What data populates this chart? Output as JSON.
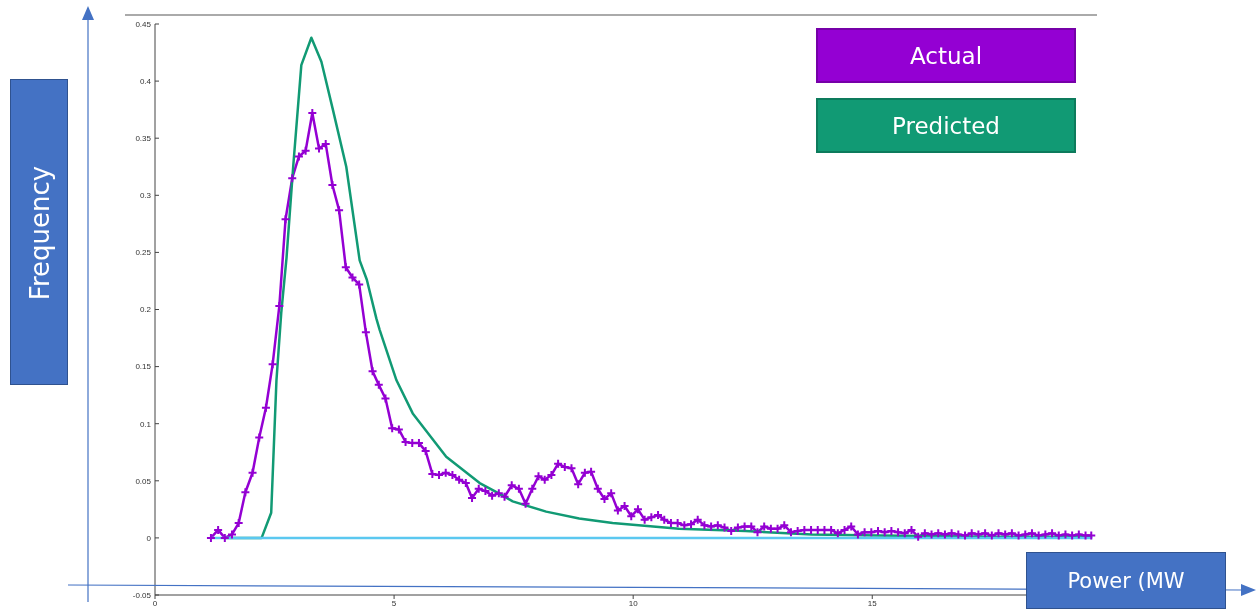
{
  "chart_data": {
    "type": "line",
    "xlabel": "Power (MW",
    "ylabel": "Frequency",
    "xlim": [
      0,
      19.7
    ],
    "xticks": [
      0,
      5,
      10,
      15
    ],
    "ylim": [
      -0.05,
      0.45
    ],
    "yticks": [
      -0.05,
      0,
      0.05,
      0.1,
      0.15,
      0.2,
      0.25,
      0.3,
      0.35,
      0.4,
      0.45
    ],
    "grid": false,
    "legend": "top right",
    "line_style": "solid",
    "series": [
      {
        "name": "Actual",
        "color": "#9400d3",
        "marker": "cross",
        "x": [
          1.17,
          1.32,
          1.46,
          1.61,
          1.75,
          1.89,
          2.04,
          2.18,
          2.32,
          2.46,
          2.6,
          2.73,
          2.87,
          3.01,
          3.15,
          3.29,
          3.43,
          3.57,
          3.71,
          3.85,
          3.99,
          4.13,
          4.27,
          4.41,
          4.55,
          4.68,
          4.82,
          4.96,
          5.1,
          5.24,
          5.38,
          5.52,
          5.66,
          5.8,
          5.94,
          6.08,
          6.22,
          6.36,
          6.5,
          6.63,
          6.77,
          6.91,
          7.05,
          7.19,
          7.31,
          7.46,
          7.61,
          7.75,
          7.89,
          8.02,
          8.15,
          8.29,
          8.43,
          8.57,
          8.71,
          8.85,
          8.99,
          9.12,
          9.26,
          9.4,
          9.54,
          9.68,
          9.82,
          9.96,
          10.1,
          10.24,
          10.38,
          10.52,
          10.65,
          10.79,
          10.93,
          11.07,
          11.21,
          11.35,
          11.49,
          11.63,
          11.77,
          11.91,
          12.05,
          12.19,
          12.33,
          12.47,
          12.6,
          12.74,
          12.88,
          13.02,
          13.16,
          13.3,
          13.44,
          13.58,
          13.72,
          13.86,
          14.0,
          14.14,
          14.28,
          14.42,
          14.56,
          14.7,
          14.84,
          14.98,
          15.12,
          15.26,
          15.4,
          15.54,
          15.68,
          15.82,
          15.96,
          16.1,
          16.24,
          16.38,
          16.52,
          16.66,
          16.8,
          16.94,
          17.08,
          17.22,
          17.36,
          17.5,
          17.64,
          17.78,
          17.92,
          18.06,
          18.2,
          18.34,
          18.48,
          18.62,
          18.76,
          18.9,
          19.04,
          19.18,
          19.32,
          19.46,
          19.58
        ],
        "values": [
          0,
          0.007,
          0,
          0.003,
          0.013,
          0.04,
          0.057,
          0.088,
          0.114,
          0.152,
          0.203,
          0.279,
          0.315,
          0.334,
          0.339,
          0.372,
          0.341,
          0.345,
          0.309,
          0.287,
          0.237,
          0.228,
          0.222,
          0.18,
          0.146,
          0.134,
          0.122,
          0.096,
          0.095,
          0.084,
          0.083,
          0.083,
          0.076,
          0.056,
          0.055,
          0.057,
          0.055,
          0.051,
          0.048,
          0.035,
          0.043,
          0.041,
          0.037,
          0.039,
          0.036,
          0.046,
          0.043,
          0.03,
          0.043,
          0.054,
          0.051,
          0.055,
          0.065,
          0.062,
          0.061,
          0.047,
          0.057,
          0.058,
          0.043,
          0.034,
          0.039,
          0.024,
          0.028,
          0.019,
          0.025,
          0.016,
          0.018,
          0.02,
          0.016,
          0.013,
          0.013,
          0.011,
          0.012,
          0.016,
          0.011,
          0.01,
          0.011,
          0.009,
          0.006,
          0.009,
          0.01,
          0.01,
          0.005,
          0.01,
          0.008,
          0.008,
          0.011,
          0.005,
          0.006,
          0.007,
          0.007,
          0.007,
          0.007,
          0.007,
          0.004,
          0.007,
          0.01,
          0.003,
          0.005,
          0.005,
          0.006,
          0.005,
          0.006,
          0.005,
          0.004,
          0.007,
          0.001,
          0.004,
          0.003,
          0.004,
          0.003,
          0.004,
          0.003,
          0.002,
          0.004,
          0.003,
          0.004,
          0.002,
          0.004,
          0.003,
          0.004,
          0.002,
          0.003,
          0.004,
          0.002,
          0.003,
          0.004,
          0.002,
          0.003,
          0.002,
          0.003,
          0.002,
          0.002
        ]
      },
      {
        "name": "Predicted",
        "color": "#119a74",
        "marker": "none",
        "x": [
          1.46,
          2.23,
          2.43,
          2.54,
          2.64,
          2.75,
          2.89,
          3.06,
          3.27,
          3.48,
          3.72,
          4.0,
          4.28,
          4.43,
          4.63,
          4.7,
          5.05,
          5.39,
          6.09,
          6.79,
          7.19,
          7.48,
          8.18,
          8.87,
          9.57,
          10.96,
          12.35,
          13.74,
          15.13,
          17.5,
          19.6
        ],
        "values": [
          0,
          0,
          0.022,
          0.138,
          0.197,
          0.245,
          0.325,
          0.414,
          0.438,
          0.417,
          0.375,
          0.325,
          0.243,
          0.226,
          0.192,
          0.182,
          0.138,
          0.109,
          0.071,
          0.048,
          0.039,
          0.032,
          0.023,
          0.017,
          0.013,
          0.008,
          0.006,
          0.003,
          0.002,
          0.001,
          0.001
        ]
      },
      {
        "color": "#5bc8f0",
        "marker": "none",
        "x": [
          1.17,
          19.6
        ],
        "values": [
          0,
          0
        ]
      }
    ]
  }
}
